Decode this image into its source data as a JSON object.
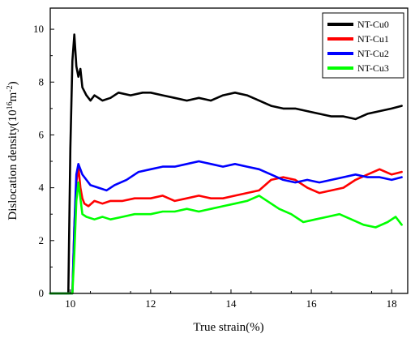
{
  "chart_data": {
    "type": "line",
    "title": "",
    "xlabel": "True strain(%)",
    "ylabel": "Dislocation density(10",
    "ylabel_sup1": "16",
    "ylabel_mid": "m",
    "ylabel_sup2": "-2",
    "ylabel_end": ")",
    "xlim": [
      9.5,
      18.4
    ],
    "ylim": [
      0,
      10.8
    ],
    "xticks": [
      10,
      12,
      14,
      16,
      18
    ],
    "yticks": [
      0,
      2,
      4,
      6,
      8,
      10
    ],
    "xtick_labels": [
      "10",
      "12",
      "14",
      "16",
      "18"
    ],
    "ytick_labels": [
      "0",
      "2",
      "4",
      "6",
      "8",
      "10"
    ],
    "grid": false,
    "legend_position": "top-right",
    "series": [
      {
        "name": "NT-Cu0",
        "color": "#000000",
        "x": [
          9.5,
          9.95,
          10.0,
          10.05,
          10.1,
          10.15,
          10.2,
          10.25,
          10.3,
          10.4,
          10.5,
          10.6,
          10.7,
          10.8,
          11.0,
          11.2,
          11.5,
          11.8,
          12.0,
          12.3,
          12.6,
          12.9,
          13.2,
          13.5,
          13.8,
          14.1,
          14.4,
          14.7,
          15.0,
          15.3,
          15.6,
          15.9,
          16.2,
          16.5,
          16.8,
          17.1,
          17.4,
          17.7,
          18.0,
          18.25
        ],
        "y": [
          0,
          0,
          5.5,
          8.8,
          9.8,
          8.6,
          8.2,
          8.5,
          7.8,
          7.5,
          7.3,
          7.5,
          7.4,
          7.3,
          7.4,
          7.6,
          7.5,
          7.6,
          7.6,
          7.5,
          7.4,
          7.3,
          7.4,
          7.3,
          7.5,
          7.6,
          7.5,
          7.3,
          7.1,
          7.0,
          7.0,
          6.9,
          6.8,
          6.7,
          6.7,
          6.6,
          6.8,
          6.9,
          7.0,
          7.1
        ]
      },
      {
        "name": "NT-Cu1",
        "color": "#ff0000",
        "x": [
          9.5,
          10.05,
          10.1,
          10.15,
          10.2,
          10.25,
          10.3,
          10.35,
          10.45,
          10.6,
          10.8,
          11.0,
          11.3,
          11.6,
          12.0,
          12.3,
          12.6,
          12.9,
          13.2,
          13.5,
          13.8,
          14.1,
          14.4,
          14.7,
          15.0,
          15.3,
          15.6,
          15.9,
          16.2,
          16.5,
          16.8,
          17.1,
          17.4,
          17.7,
          18.0,
          18.25
        ],
        "y": [
          0,
          0,
          2.5,
          4.2,
          4.8,
          4.0,
          3.6,
          3.4,
          3.3,
          3.5,
          3.4,
          3.5,
          3.5,
          3.6,
          3.6,
          3.7,
          3.5,
          3.6,
          3.7,
          3.6,
          3.6,
          3.7,
          3.8,
          3.9,
          4.3,
          4.4,
          4.3,
          4.0,
          3.8,
          3.9,
          4.0,
          4.3,
          4.5,
          4.7,
          4.5,
          4.6
        ]
      },
      {
        "name": "NT-Cu2",
        "color": "#0000ff",
        "x": [
          9.5,
          10.05,
          10.1,
          10.15,
          10.2,
          10.25,
          10.3,
          10.4,
          10.5,
          10.7,
          10.9,
          11.1,
          11.4,
          11.7,
          12.0,
          12.3,
          12.6,
          12.9,
          13.2,
          13.5,
          13.8,
          14.1,
          14.4,
          14.7,
          15.0,
          15.3,
          15.6,
          15.9,
          16.2,
          16.5,
          16.8,
          17.1,
          17.4,
          17.7,
          18.0,
          18.25
        ],
        "y": [
          0,
          0,
          2.5,
          4.5,
          4.9,
          4.7,
          4.5,
          4.3,
          4.1,
          4.0,
          3.9,
          4.1,
          4.3,
          4.6,
          4.7,
          4.8,
          4.8,
          4.9,
          5.0,
          4.9,
          4.8,
          4.9,
          4.8,
          4.7,
          4.5,
          4.3,
          4.2,
          4.3,
          4.2,
          4.3,
          4.4,
          4.5,
          4.4,
          4.4,
          4.3,
          4.4
        ]
      },
      {
        "name": "NT-Cu3",
        "color": "#00ff00",
        "x": [
          9.5,
          10.05,
          10.1,
          10.15,
          10.2,
          10.25,
          10.3,
          10.4,
          10.6,
          10.8,
          11.0,
          11.3,
          11.6,
          12.0,
          12.3,
          12.6,
          12.9,
          13.2,
          13.5,
          13.8,
          14.1,
          14.4,
          14.7,
          14.9,
          15.2,
          15.5,
          15.8,
          16.1,
          16.4,
          16.7,
          17.0,
          17.3,
          17.6,
          17.9,
          18.1,
          18.25
        ],
        "y": [
          0,
          0,
          1.5,
          3.5,
          4.2,
          3.6,
          3.0,
          2.9,
          2.8,
          2.9,
          2.8,
          2.9,
          3.0,
          3.0,
          3.1,
          3.1,
          3.2,
          3.1,
          3.2,
          3.3,
          3.4,
          3.5,
          3.7,
          3.5,
          3.2,
          3.0,
          2.7,
          2.8,
          2.9,
          3.0,
          2.8,
          2.6,
          2.5,
          2.7,
          2.9,
          2.6
        ]
      }
    ]
  }
}
